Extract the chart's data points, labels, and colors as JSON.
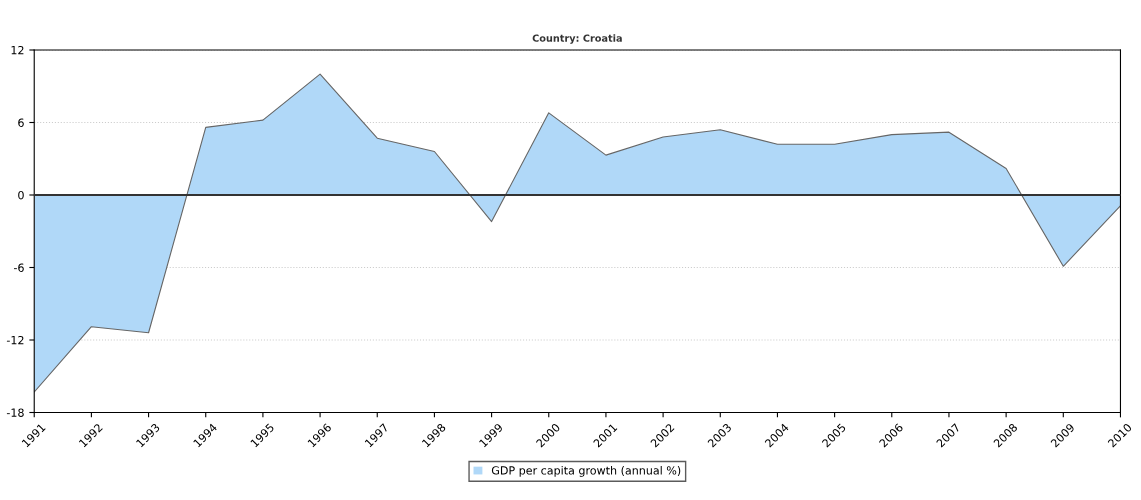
{
  "chart_data": {
    "type": "area",
    "title": "Country: Croatia",
    "x": [
      1991,
      1992,
      1993,
      1994,
      1995,
      1996,
      1997,
      1998,
      1999,
      2000,
      2001,
      2002,
      2003,
      2004,
      2005,
      2006,
      2007,
      2008,
      2009,
      2010
    ],
    "series": [
      {
        "name": "GDP per capita growth (annual %)",
        "color": "#b0d8f8",
        "values": [
          -16.3,
          -10.9,
          -11.4,
          5.6,
          6.2,
          10.0,
          4.7,
          3.6,
          -2.2,
          6.8,
          3.3,
          4.8,
          5.4,
          4.2,
          4.2,
          5.0,
          5.2,
          2.2,
          -5.9,
          -0.9
        ]
      }
    ],
    "xlim": [
      1991,
      2010
    ],
    "xticks": [
      1991,
      1992,
      1993,
      1994,
      1995,
      1996,
      1997,
      1998,
      1999,
      2000,
      2001,
      2002,
      2003,
      2004,
      2005,
      2006,
      2007,
      2008,
      2009,
      2010
    ],
    "ylim": [
      -18,
      12
    ],
    "yticks": [
      -18,
      -12,
      -6,
      0,
      6,
      12
    ],
    "ref_lines": [
      {
        "axis": "y",
        "value": 0,
        "color": "#333333"
      }
    ],
    "grid": "y",
    "legend": "bottom"
  }
}
